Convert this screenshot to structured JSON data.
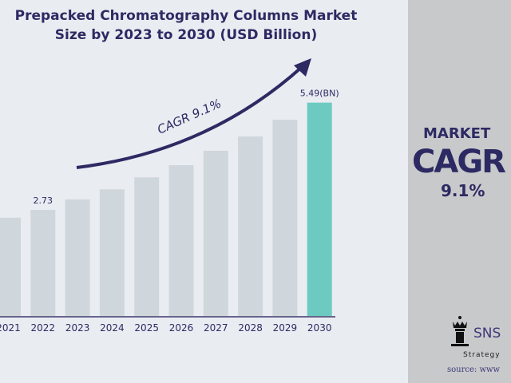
{
  "chart_data": {
    "type": "bar",
    "title": "Prepacked Chromatography Columns Market Size by 2023 to 2030 (USD Billion)",
    "categories": [
      "2021",
      "2022",
      "2023",
      "2024",
      "2025",
      "2026",
      "2027",
      "2028",
      "2029",
      "2030"
    ],
    "values": [
      2.53,
      2.73,
      3.0,
      3.26,
      3.57,
      3.88,
      4.25,
      4.62,
      5.05,
      5.49
    ],
    "data_labels": {
      "2022": "2.73",
      "2030": "5.49(BN)"
    },
    "annotation": "CAGR  9.1%",
    "colors": {
      "bar": "#d0d7dc",
      "highlight": "#6ccac1",
      "axis": "#3d3a6e",
      "text": "#2d2a63"
    }
  },
  "panel": {
    "market": "MARKET",
    "cagr": "CAGR",
    "value": "9.1%",
    "brand": "SNS",
    "brand_sub": "Strategy",
    "source": "source: www"
  }
}
